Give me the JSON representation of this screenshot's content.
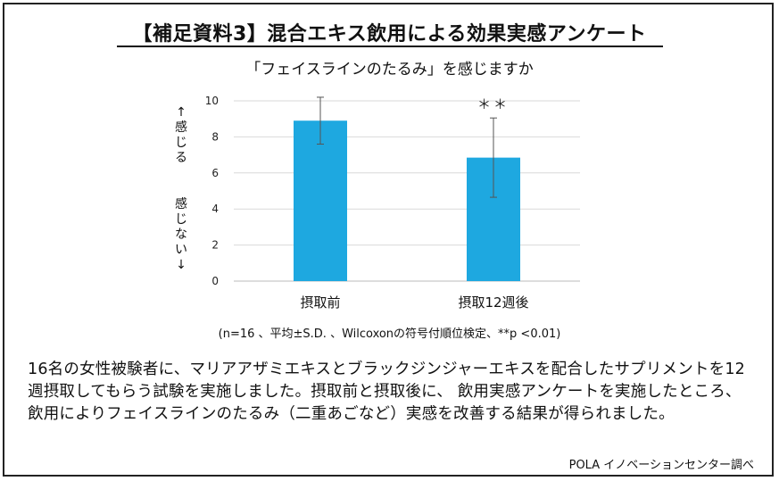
{
  "title": "【補足資料3】混合エキス飲用による効果実感アンケート",
  "chart_data": {
    "type": "bar",
    "title": "「フェイスラインのたるみ」を感じますか",
    "ylabel_top": "↑感じる",
    "ylabel_bottom": "感じない↓",
    "categories": [
      "摂取前",
      "摂取12週後"
    ],
    "values": [
      8.9,
      6.85
    ],
    "error": [
      1.3,
      2.2
    ],
    "ylim": [
      0,
      10
    ],
    "yticks": [
      0,
      2,
      4,
      6,
      8,
      10
    ],
    "bar_color": "#1ea8e0",
    "significance": [
      {
        "category_index": 1,
        "label": "＊＊"
      }
    ]
  },
  "note": "(n=16 、平均±S.D. 、Wilcoxonの符号付順位検定、**p <0.01)",
  "description": "16名の女性被験者に、マリアアザミエキスとブラックジンジャーエキスを配合したサプリメントを12週摂取してもらう試験を実施しました。摂取前と摂取後に、 飲用実感アンケートを実施したところ、飲用によりフェイスラインのたるみ（二重あごなど）実感を改善する結果が得られました。",
  "credit": "POLA イノベーションセンター調べ"
}
